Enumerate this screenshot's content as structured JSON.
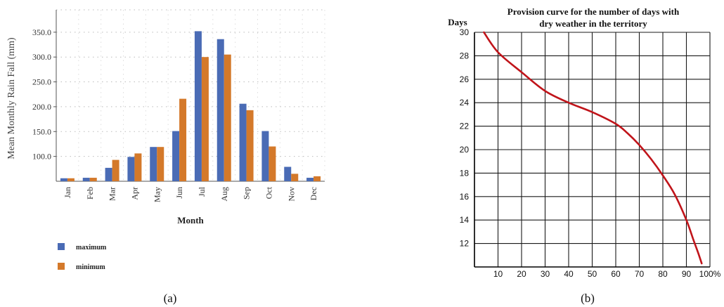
{
  "panels": {
    "a_caption": "(a)",
    "b_caption": "(b)"
  },
  "chart_data": [
    {
      "type": "bar",
      "xlabel": "Month",
      "ylabel": "Mean Monthly Rain Fall (mm)",
      "ylim": [
        50,
        395
      ],
      "yticks": [
        100,
        150,
        200,
        250,
        300,
        350
      ],
      "ytick_labels": [
        "100.0",
        "150.0",
        "200.0",
        "250.0",
        "300.0",
        "350.0"
      ],
      "grid": true,
      "legend_position": "bottom-left",
      "categories": [
        "Jan",
        "Feb",
        "Mar",
        "Apr",
        "May",
        "Jun",
        "Jul",
        "Aug",
        "Sep",
        "Oct",
        "Nov",
        "Dec"
      ],
      "series": [
        {
          "name": "maximum",
          "color": "#4a6bb5",
          "values": [
            56,
            57,
            77,
            99,
            119,
            151,
            352,
            336,
            206,
            151,
            79,
            57
          ]
        },
        {
          "name": "minimum",
          "color": "#d4792a",
          "values": [
            56,
            57,
            93,
            106,
            119,
            216,
            300,
            305,
            193,
            120,
            65,
            60
          ]
        }
      ]
    },
    {
      "type": "line",
      "title_lines": [
        "Provision curve for the number of days with",
        "dry weather in the territory"
      ],
      "ylabel": "Days",
      "xlim": [
        0,
        100
      ],
      "ylim": [
        10,
        30
      ],
      "xticks": [
        10,
        20,
        30,
        40,
        50,
        60,
        70,
        80,
        90,
        100
      ],
      "xtick_labels": [
        "10",
        "20",
        "30",
        "40",
        "50",
        "60",
        "70",
        "80",
        "90",
        "100%"
      ],
      "yticks": [
        12,
        14,
        16,
        18,
        20,
        22,
        24,
        26,
        28,
        30
      ],
      "ytick_labels": [
        "12",
        "14",
        "16",
        "18",
        "20",
        "22",
        "24",
        "26",
        "28",
        "30"
      ],
      "grid": true,
      "color": "#c0141a",
      "x": [
        4,
        10,
        20,
        30,
        40,
        50,
        60,
        65,
        70,
        75,
        80,
        85,
        90,
        93,
        95,
        96.5
      ],
      "y": [
        30,
        28.3,
        26.6,
        25.0,
        24.0,
        23.2,
        22.2,
        21.4,
        20.4,
        19.2,
        17.8,
        16.2,
        14.0,
        12.3,
        11.2,
        10.3
      ]
    }
  ]
}
